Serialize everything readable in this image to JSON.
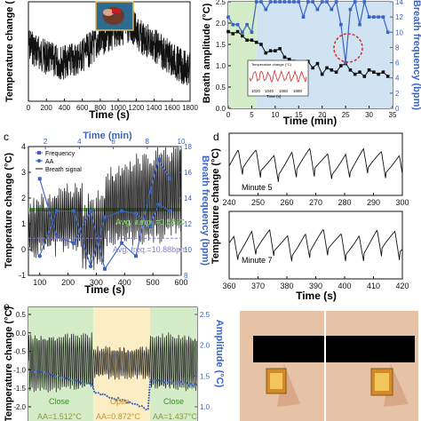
{
  "panel_labels": {
    "c": "c",
    "d": "d",
    "e": "e"
  },
  "colors": {
    "black": "#111111",
    "blue": "#3a63c4",
    "green_band": "#7fc36b",
    "green_fill": "#d4ecc8",
    "blue_fill": "#cfe3f3",
    "yellow_fill": "#fbeec5",
    "red": "#d62b2b",
    "purple": "#8a7ad1"
  },
  "chart_data": [
    {
      "id": "a",
      "type": "line",
      "xlabel": "Time (s)",
      "ylabel": "Temperature change (",
      "xlim": [
        0,
        1800
      ],
      "x_ticks": [
        "0",
        "200",
        "400",
        "600",
        "800",
        "1000",
        "1200",
        "1400",
        "1600",
        "1800"
      ],
      "y_ticks": [],
      "series": [
        {
          "name": "",
          "style": "noisy-black"
        }
      ]
    },
    {
      "id": "b",
      "type": "line",
      "xlabel": "Time (min)",
      "ylabel": "Breath amplitude (°C)",
      "ylabel_right": "Breath frequency (bpm)",
      "xlim": [
        0,
        35
      ],
      "ylim": [
        0.0,
        2.5
      ],
      "ylim_right": [
        0,
        14
      ],
      "x_ticks": [
        "0",
        "5",
        "10",
        "15",
        "20",
        "25",
        "30",
        "35"
      ],
      "y_ticks": [
        "0.0",
        "0.5",
        "1.0",
        "1.5",
        "2.0",
        "2.5"
      ],
      "y_ticks_right": [
        "0",
        "2",
        "4",
        "6",
        "8",
        "10",
        "12",
        "14"
      ],
      "inset": {
        "ylabel": "Temperature change (°C)",
        "xlabel": "Time (s)",
        "x_ticks": [
          "1020",
          "1040",
          "1060",
          "1080"
        ]
      },
      "series": [
        {
          "name": "",
          "axis": "left",
          "x": [
            0,
            1,
            2,
            3,
            4,
            5,
            6,
            7,
            8,
            9,
            10,
            11,
            12,
            13,
            14,
            15,
            16,
            17,
            18,
            19,
            20,
            21,
            22,
            23,
            24,
            25,
            26,
            27,
            28,
            29,
            30,
            31,
            32,
            33,
            34
          ],
          "values": [
            1.8,
            1.75,
            1.8,
            1.7,
            1.6,
            1.6,
            1.55,
            1.5,
            1.3,
            1.35,
            1.35,
            1.4,
            1.2,
            1.15,
            1.1,
            1.0,
            1.05,
            1.1,
            0.95,
            1.05,
            0.8,
            0.95,
            0.9,
            0.85,
            1.0,
            1.05,
            0.9,
            0.8,
            0.85,
            0.75,
            0.9,
            0.85,
            0.8,
            0.85,
            0.75
          ]
        },
        {
          "name": "",
          "axis": "right",
          "x": [
            0,
            1,
            2,
            3,
            4,
            5,
            6,
            7,
            8,
            9,
            10,
            11,
            12,
            13,
            14,
            15,
            16,
            17,
            18,
            19,
            20,
            21,
            22,
            23,
            24,
            25,
            26,
            27,
            28,
            29,
            30,
            31,
            32,
            33,
            34
          ],
          "values": [
            12,
            11,
            11,
            10,
            11,
            10,
            14,
            14,
            13,
            14,
            14,
            14,
            14,
            14,
            14,
            14,
            12,
            14,
            14,
            13,
            14,
            14,
            13,
            14,
            11,
            6,
            13,
            14,
            11,
            14,
            12,
            12,
            12,
            12,
            10
          ]
        }
      ]
    },
    {
      "id": "c",
      "type": "line",
      "xlabel": "Time (s)",
      "xlabel_top": "Time (min)",
      "ylabel": "Temperature change (°C)",
      "ylabel_right": "Breath frequency (bpm)",
      "xlim": [
        60,
        600
      ],
      "ylim": [
        -1.0,
        4.0
      ],
      "ylim_right": [
        8,
        18
      ],
      "x_ticks": [
        "100",
        "200",
        "300",
        "400",
        "500",
        "600"
      ],
      "x_ticks_top": [
        "2",
        "4",
        "6",
        "8",
        "10"
      ],
      "y_ticks": [
        "-1",
        "0",
        "1",
        "2",
        "3",
        "4"
      ],
      "y_ticks_right": [
        "8",
        "10",
        "12",
        "14",
        "16",
        "18"
      ],
      "legend": [
        "Frequency",
        "AA",
        "Breath signal"
      ],
      "annotations": {
        "amp": "Avg. amp. =1.55°C",
        "freq": "Avg. freq.=10.88bpm"
      },
      "series": [
        {
          "name": "Frequency",
          "axis": "right",
          "x": [
            100,
            160,
            220,
            280,
            330,
            390,
            440,
            490,
            520,
            560
          ],
          "values": [
            15.5,
            11,
            10.5,
            13,
            8.5,
            10.5,
            9.5,
            14.5,
            17,
            15.5
          ]
        },
        {
          "name": "AA",
          "axis": "right",
          "x": [
            100,
            160,
            220,
            280,
            330,
            390,
            440,
            490,
            520,
            560
          ],
          "values": [
            9.5,
            13,
            13,
            8.7,
            12.5,
            13,
            12.8,
            11.8,
            13.5,
            13
          ]
        },
        {
          "name": "Breath signal",
          "axis": "left",
          "style": "oscillating"
        }
      ]
    },
    {
      "id": "d1",
      "type": "line",
      "label": "Minute 5",
      "xlim": [
        240,
        300
      ],
      "x_ticks": [
        "240",
        "250",
        "260",
        "270",
        "280",
        "290",
        "300"
      ]
    },
    {
      "id": "d2",
      "type": "line",
      "label": "Minute 7",
      "xlabel": "Time (s)",
      "ylabel": "Temperature change (°C)",
      "xlim": [
        360,
        420
      ],
      "x_ticks": [
        "360",
        "370",
        "380",
        "390",
        "400",
        "410",
        "420"
      ]
    },
    {
      "id": "e",
      "type": "line",
      "xlabel": "",
      "ylabel": "Temperature change (°C)",
      "ylabel_right": "Amplitude (°C)",
      "ylim": [
        -2.0,
        0.5
      ],
      "ylim_right": [
        1.0,
        2.5
      ],
      "y_ticks": [
        "0.5",
        "0.0",
        "-0.5",
        "-1.0",
        "-1.5",
        "-2.0"
      ],
      "y_ticks_right": [
        "2.5",
        "2.0",
        "1.5",
        "1.0"
      ],
      "regions": [
        {
          "label": "Close",
          "aa": "AA=1.512°C"
        },
        {
          "label": "Open",
          "aa": "AA=0.872°C"
        },
        {
          "label": "Close",
          "aa": "AA=1.437°C"
        }
      ]
    }
  ]
}
